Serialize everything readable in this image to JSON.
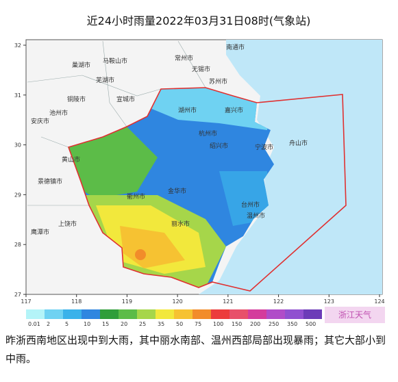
{
  "title": "近24小时雨量2022年03月31日08时(气象站)",
  "map": {
    "lon_ticks": [
      117,
      118,
      119,
      120,
      121,
      122,
      123,
      124
    ],
    "lat_ticks": [
      32,
      31,
      30,
      29,
      28,
      27
    ],
    "cities": [
      "南通市",
      "巢湖市",
      "马鞍山市",
      "常州市",
      "无锡市",
      "芜湖市",
      "苏州市",
      "铜陵市",
      "宣城市",
      "池州市",
      "安庆市",
      "湖州市",
      "嘉兴市",
      "杭州市",
      "绍兴市",
      "宁波市",
      "舟山市",
      "黄山市",
      "景德镇市",
      "衢州市",
      "金华市",
      "台州市",
      "上饶市",
      "丽水市",
      "鹰潭市",
      "温州市"
    ]
  },
  "legend": {
    "items": [
      {
        "label": "0.01",
        "color": "#b4f4f8"
      },
      {
        "label": "2",
        "color": "#6fd2f2"
      },
      {
        "label": "5",
        "color": "#3ab2ea"
      },
      {
        "label": "10",
        "color": "#2f86e0"
      },
      {
        "label": "15",
        "color": "#2f9e3a"
      },
      {
        "label": "20",
        "color": "#5cbc48"
      },
      {
        "label": "25",
        "color": "#a6d64a"
      },
      {
        "label": "35",
        "color": "#f2e83c"
      },
      {
        "label": "50",
        "color": "#f6c232"
      },
      {
        "label": "75",
        "color": "#f28c2a"
      },
      {
        "label": "100",
        "color": "#ec3c3c"
      },
      {
        "label": "150",
        "color": "#e8506a"
      },
      {
        "label": "200",
        "color": "#d43c9c"
      },
      {
        "label": "250",
        "color": "#b04cc8"
      },
      {
        "label": "350",
        "color": "#9050d0"
      },
      {
        "label": "500",
        "color": "#6c3cb8"
      }
    ]
  },
  "watermark": "浙江天气",
  "caption": "昨浙西南地区出现中到大雨，其中丽水南部、温州西部局部出现暴雨；其它大部小到中雨。"
}
